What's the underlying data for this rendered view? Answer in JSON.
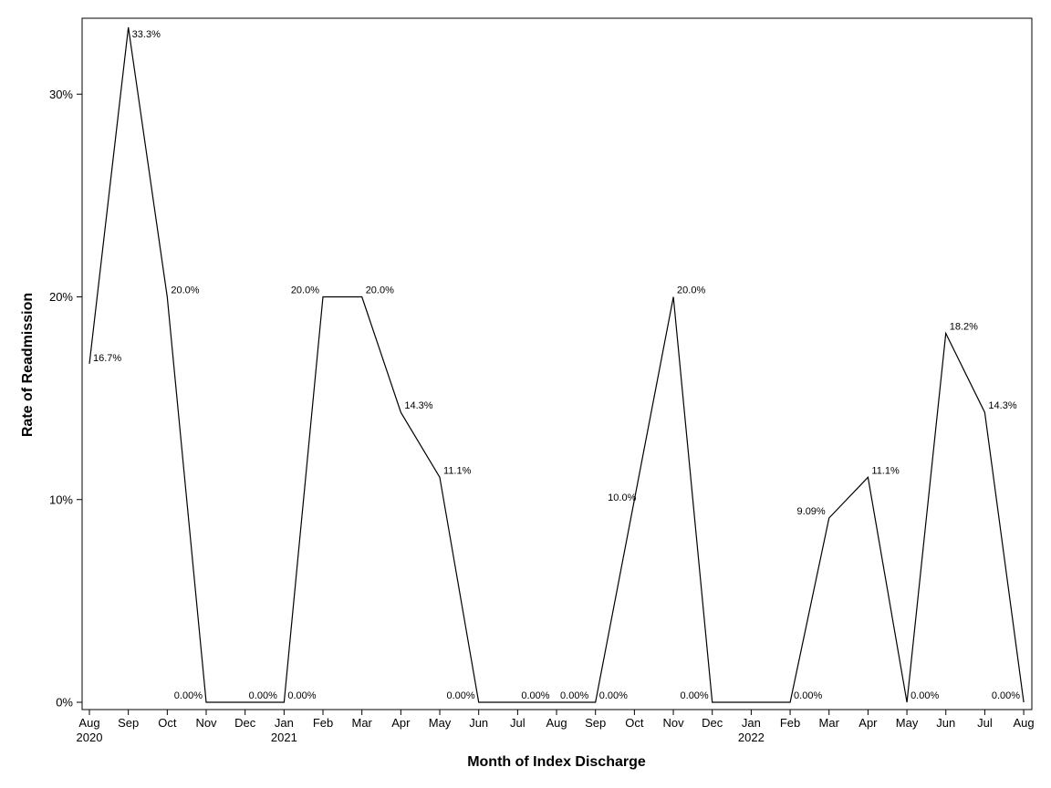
{
  "chart_data": {
    "type": "line",
    "title": "",
    "xlabel": "Month of Index Discharge",
    "ylabel": "Rate of Readmission",
    "ylim": [
      0,
      33.3
    ],
    "yticks": [
      "0%",
      "10%",
      "20%",
      "30%"
    ],
    "ytick_values": [
      0,
      10,
      20,
      30
    ],
    "grid": false,
    "line_color": "#000000",
    "x": [
      "Aug 2020",
      "Sep 2020",
      "Oct 2020",
      "Nov 2020",
      "Dec 2020",
      "Jan 2021",
      "Feb 2021",
      "Mar 2021",
      "Apr 2021",
      "May 2021",
      "Jun 2021",
      "Jul 2021",
      "Aug 2021",
      "Sep 2021",
      "Oct 2021",
      "Nov 2021",
      "Dec 2021",
      "Jan 2022",
      "Feb 2022",
      "Mar 2022",
      "Apr 2022",
      "May 2022",
      "Jun 2022",
      "Jul 2022",
      "Aug 2022"
    ],
    "xtick_months": [
      "Aug",
      "Sep",
      "Oct",
      "Nov",
      "Dec",
      "Jan",
      "Feb",
      "Mar",
      "Apr",
      "May",
      "Jun",
      "Jul",
      "Aug",
      "Sep",
      "Oct",
      "Nov",
      "Dec",
      "Jan",
      "Feb",
      "Mar",
      "Apr",
      "May",
      "Jun",
      "Jul",
      "Aug"
    ],
    "xtick_years": [
      "2020",
      "",
      "",
      "",
      "",
      "2021",
      "",
      "",
      "",
      "",
      "",
      "",
      "",
      "",
      "",
      "",
      "",
      "2022",
      "",
      "",
      "",
      "",
      "",
      "",
      ""
    ],
    "values": [
      16.7,
      33.3,
      20.0,
      0,
      0,
      0,
      20.0,
      20.0,
      14.3,
      11.1,
      0,
      0,
      0,
      0,
      10.0,
      20.0,
      0,
      0,
      0,
      9.09,
      11.1,
      0,
      18.2,
      14.3,
      0
    ],
    "data_labels": [
      "16.7%",
      "33.3%",
      "20.0%",
      "0.00%",
      "0.00%",
      "0.00%",
      "20.0%",
      "20.0%",
      "14.3%",
      "11.1%",
      "0.00%",
      "0.00%",
      "0.00%",
      "0.00%",
      "10.0%",
      "20.0%",
      "0.00%",
      "",
      "0.00%",
      "9.09%",
      "11.1%",
      "0.00%",
      "18.2%",
      "14.3%",
      "0.00%"
    ]
  }
}
